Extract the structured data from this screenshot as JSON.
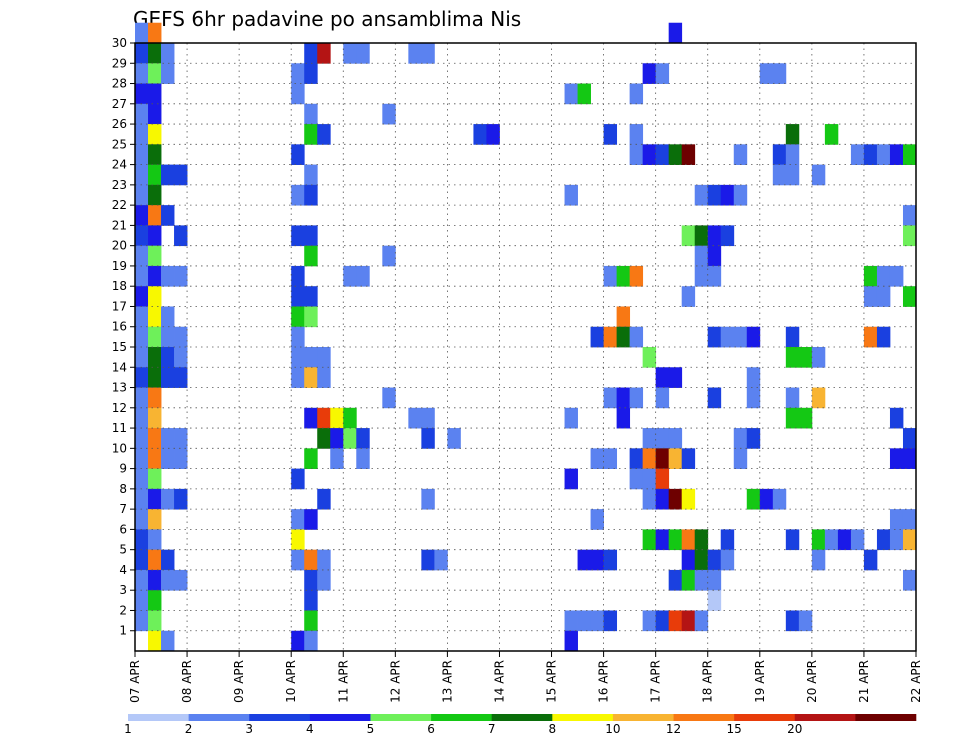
{
  "chart_data": {
    "type": "heatmap",
    "title": "GEFS 6hr padavine po ansamblima Nis",
    "y_ticks": [
      1,
      2,
      3,
      4,
      5,
      6,
      7,
      8,
      9,
      10,
      11,
      12,
      13,
      14,
      15,
      16,
      17,
      18,
      19,
      20,
      21,
      22,
      23,
      24,
      25,
      26,
      27,
      28,
      29,
      30
    ],
    "ylim": [
      0,
      30
    ],
    "x_ticks": [
      "07 APR",
      "08 APR",
      "09 APR",
      "10 APR",
      "11 APR",
      "12 APR",
      "13 APR",
      "14 APR",
      "15 APR",
      "16 APR",
      "17 APR",
      "18 APR",
      "19 APR",
      "20 APR",
      "21 APR",
      "22 APR"
    ],
    "grid": true,
    "time_steps": 60,
    "colorbar": {
      "labels": [
        "1",
        "2",
        "3",
        "4",
        "5",
        "6",
        "7",
        "8",
        "10",
        "12",
        "15",
        "20"
      ],
      "colors": [
        "#b4c8f8",
        "#5b82f0",
        "#1a40e0",
        "#1a1ae8",
        "#6ef05a",
        "#14c814",
        "#0a6e0a",
        "#f8f800",
        "#f8b432",
        "#f87814",
        "#e83c0a",
        "#b41414",
        "#6e0000"
      ]
    },
    "cells": [
      [
        0,
        30,
        1
      ],
      [
        0,
        29,
        2
      ],
      [
        0,
        28,
        1
      ],
      [
        0,
        27,
        3
      ],
      [
        0,
        26,
        1
      ],
      [
        0,
        25,
        1
      ],
      [
        0,
        24,
        1
      ],
      [
        0,
        23,
        1
      ],
      [
        0,
        22,
        1
      ],
      [
        0,
        21,
        3
      ],
      [
        0,
        20,
        2
      ],
      [
        0,
        19,
        1
      ],
      [
        0,
        18,
        1
      ],
      [
        0,
        17,
        3
      ],
      [
        0,
        16,
        1
      ],
      [
        0,
        15,
        1
      ],
      [
        0,
        14,
        1
      ],
      [
        0,
        13,
        2
      ],
      [
        0,
        12,
        1
      ],
      [
        0,
        11,
        1
      ],
      [
        0,
        10,
        1
      ],
      [
        0,
        9,
        1
      ],
      [
        0,
        8,
        1
      ],
      [
        0,
        7,
        1
      ],
      [
        0,
        6,
        1
      ],
      [
        0,
        5,
        2
      ],
      [
        0,
        4,
        2
      ],
      [
        0,
        3,
        1
      ],
      [
        0,
        2,
        1
      ],
      [
        0,
        1,
        1
      ],
      [
        1,
        30,
        9
      ],
      [
        1,
        29,
        6
      ],
      [
        1,
        28,
        4
      ],
      [
        1,
        27,
        3
      ],
      [
        1,
        26,
        3
      ],
      [
        1,
        25,
        7
      ],
      [
        1,
        24,
        6
      ],
      [
        1,
        23,
        5
      ],
      [
        1,
        22,
        6
      ],
      [
        1,
        21,
        9
      ],
      [
        1,
        20,
        3
      ],
      [
        1,
        19,
        4
      ],
      [
        1,
        18,
        3
      ],
      [
        1,
        17,
        7
      ],
      [
        1,
        16,
        7
      ],
      [
        1,
        15,
        4
      ],
      [
        1,
        14,
        6
      ],
      [
        1,
        13,
        6
      ],
      [
        1,
        12,
        9
      ],
      [
        1,
        11,
        8
      ],
      [
        1,
        10,
        9
      ],
      [
        1,
        9,
        9
      ],
      [
        1,
        8,
        4
      ],
      [
        1,
        7,
        3
      ],
      [
        1,
        6,
        8
      ],
      [
        1,
        5,
        1
      ],
      [
        1,
        4,
        9
      ],
      [
        1,
        3,
        3
      ],
      [
        1,
        2,
        5
      ],
      [
        1,
        1,
        4
      ],
      [
        1,
        0,
        7
      ],
      [
        2,
        29,
        1
      ],
      [
        2,
        28,
        1
      ],
      [
        2,
        23,
        2
      ],
      [
        2,
        21,
        2
      ],
      [
        2,
        18,
        1
      ],
      [
        2,
        16,
        1
      ],
      [
        2,
        15,
        1
      ],
      [
        2,
        14,
        2
      ],
      [
        2,
        13,
        2
      ],
      [
        2,
        10,
        1
      ],
      [
        2,
        9,
        1
      ],
      [
        2,
        7,
        1
      ],
      [
        2,
        4,
        2
      ],
      [
        2,
        3,
        1
      ],
      [
        2,
        0,
        1
      ],
      [
        3,
        23,
        2
      ],
      [
        3,
        20,
        2
      ],
      [
        3,
        18,
        1
      ],
      [
        3,
        15,
        1
      ],
      [
        3,
        14,
        1
      ],
      [
        3,
        13,
        2
      ],
      [
        3,
        10,
        1
      ],
      [
        3,
        9,
        1
      ],
      [
        3,
        7,
        2
      ],
      [
        3,
        3,
        1
      ],
      [
        12,
        28,
        1
      ],
      [
        12,
        27,
        1
      ],
      [
        12,
        24,
        2
      ],
      [
        12,
        22,
        1
      ],
      [
        12,
        20,
        2
      ],
      [
        12,
        18,
        2
      ],
      [
        12,
        17,
        2
      ],
      [
        12,
        16,
        5
      ],
      [
        12,
        15,
        1
      ],
      [
        12,
        14,
        1
      ],
      [
        12,
        13,
        1
      ],
      [
        12,
        8,
        2
      ],
      [
        12,
        6,
        1
      ],
      [
        12,
        5,
        7
      ],
      [
        12,
        4,
        1
      ],
      [
        12,
        0,
        3
      ],
      [
        13,
        29,
        2
      ],
      [
        13,
        28,
        2
      ],
      [
        13,
        26,
        1
      ],
      [
        13,
        25,
        5
      ],
      [
        13,
        23,
        1
      ],
      [
        13,
        22,
        2
      ],
      [
        13,
        20,
        2
      ],
      [
        13,
        19,
        5
      ],
      [
        13,
        17,
        2
      ],
      [
        13,
        16,
        4
      ],
      [
        13,
        14,
        1
      ],
      [
        13,
        13,
        8
      ],
      [
        13,
        11,
        3
      ],
      [
        13,
        9,
        5
      ],
      [
        13,
        6,
        3
      ],
      [
        13,
        4,
        9
      ],
      [
        13,
        3,
        2
      ],
      [
        13,
        2,
        2
      ],
      [
        13,
        1,
        5
      ],
      [
        13,
        0,
        1
      ],
      [
        14,
        29,
        11
      ],
      [
        14,
        25,
        2
      ],
      [
        14,
        14,
        1
      ],
      [
        14,
        13,
        1
      ],
      [
        14,
        11,
        10
      ],
      [
        14,
        10,
        6
      ],
      [
        14,
        7,
        2
      ],
      [
        14,
        4,
        1
      ],
      [
        14,
        3,
        1
      ],
      [
        15,
        11,
        7
      ],
      [
        15,
        10,
        3
      ],
      [
        15,
        9,
        1
      ],
      [
        16,
        11,
        5
      ],
      [
        16,
        10,
        4
      ],
      [
        17,
        10,
        2
      ],
      [
        17,
        9,
        1
      ],
      [
        16,
        29,
        1
      ],
      [
        17,
        29,
        1
      ],
      [
        16,
        18,
        1
      ],
      [
        17,
        18,
        1
      ],
      [
        19,
        26,
        1
      ],
      [
        19,
        19,
        1
      ],
      [
        19,
        12,
        1
      ],
      [
        21,
        29,
        1
      ],
      [
        22,
        29,
        1
      ],
      [
        21,
        11,
        1
      ],
      [
        22,
        11,
        1
      ],
      [
        22,
        10,
        2
      ],
      [
        22,
        7,
        1
      ],
      [
        22,
        4,
        2
      ],
      [
        23,
        4,
        1
      ],
      [
        24,
        10,
        1
      ],
      [
        26,
        25,
        2
      ],
      [
        27,
        25,
        3
      ],
      [
        33,
        27,
        1
      ],
      [
        33,
        22,
        1
      ],
      [
        33,
        11,
        1
      ],
      [
        33,
        8,
        3
      ],
      [
        33,
        1,
        1
      ],
      [
        33,
        0,
        3
      ],
      [
        34,
        27,
        5
      ],
      [
        34,
        4,
        3
      ],
      [
        34,
        1,
        1
      ],
      [
        35,
        15,
        2
      ],
      [
        35,
        9,
        1
      ],
      [
        35,
        6,
        1
      ],
      [
        35,
        4,
        3
      ],
      [
        35,
        1,
        1
      ],
      [
        36,
        25,
        2
      ],
      [
        36,
        18,
        1
      ],
      [
        36,
        15,
        9
      ],
      [
        36,
        12,
        1
      ],
      [
        36,
        9,
        1
      ],
      [
        36,
        4,
        2
      ],
      [
        36,
        1,
        2
      ],
      [
        37,
        18,
        5
      ],
      [
        37,
        16,
        9
      ],
      [
        37,
        15,
        6
      ],
      [
        37,
        12,
        3
      ],
      [
        37,
        11,
        3
      ],
      [
        38,
        27,
        1
      ],
      [
        38,
        25,
        1
      ],
      [
        38,
        24,
        1
      ],
      [
        38,
        18,
        9
      ],
      [
        38,
        15,
        1
      ],
      [
        38,
        12,
        1
      ],
      [
        38,
        9,
        2
      ],
      [
        38,
        8,
        1
      ],
      [
        39,
        28,
        3
      ],
      [
        39,
        24,
        3
      ],
      [
        39,
        14,
        4
      ],
      [
        39,
        10,
        1
      ],
      [
        39,
        9,
        9
      ],
      [
        39,
        8,
        1
      ],
      [
        39,
        7,
        1
      ],
      [
        39,
        5,
        5
      ],
      [
        39,
        1,
        1
      ],
      [
        40,
        28,
        1
      ],
      [
        40,
        24,
        2
      ],
      [
        40,
        13,
        3
      ],
      [
        40,
        12,
        1
      ],
      [
        40,
        10,
        1
      ],
      [
        40,
        9,
        12
      ],
      [
        40,
        8,
        10
      ],
      [
        40,
        7,
        3
      ],
      [
        40,
        5,
        3
      ],
      [
        40,
        1,
        2
      ],
      [
        41,
        30,
        3
      ],
      [
        41,
        24,
        6
      ],
      [
        41,
        13,
        3
      ],
      [
        41,
        10,
        1
      ],
      [
        41,
        9,
        8
      ],
      [
        41,
        7,
        12
      ],
      [
        41,
        5,
        5
      ],
      [
        41,
        3,
        2
      ],
      [
        41,
        1,
        10
      ],
      [
        42,
        24,
        12
      ],
      [
        42,
        20,
        4
      ],
      [
        42,
        17,
        1
      ],
      [
        42,
        9,
        2
      ],
      [
        42,
        7,
        7
      ],
      [
        42,
        5,
        9
      ],
      [
        42,
        4,
        3
      ],
      [
        42,
        3,
        5
      ],
      [
        42,
        1,
        11
      ],
      [
        43,
        22,
        1
      ],
      [
        43,
        20,
        6
      ],
      [
        43,
        19,
        1
      ],
      [
        43,
        18,
        1
      ],
      [
        43,
        5,
        6
      ],
      [
        43,
        4,
        6
      ],
      [
        43,
        3,
        1
      ],
      [
        43,
        1,
        1
      ],
      [
        44,
        22,
        2
      ],
      [
        44,
        20,
        3
      ],
      [
        44,
        19,
        3
      ],
      [
        44,
        18,
        1
      ],
      [
        44,
        15,
        2
      ],
      [
        44,
        12,
        2
      ],
      [
        44,
        4,
        2
      ],
      [
        44,
        3,
        1
      ],
      [
        44,
        2,
        0
      ],
      [
        45,
        22,
        3
      ],
      [
        45,
        20,
        2
      ],
      [
        45,
        15,
        1
      ],
      [
        45,
        5,
        2
      ],
      [
        45,
        4,
        1
      ],
      [
        46,
        24,
        1
      ],
      [
        46,
        22,
        1
      ],
      [
        46,
        15,
        1
      ],
      [
        46,
        10,
        1
      ],
      [
        46,
        9,
        1
      ],
      [
        47,
        15,
        3
      ],
      [
        47,
        13,
        1
      ],
      [
        47,
        12,
        1
      ],
      [
        47,
        10,
        2
      ],
      [
        47,
        7,
        5
      ],
      [
        48,
        28,
        1
      ],
      [
        48,
        7,
        3
      ],
      [
        49,
        28,
        1
      ],
      [
        49,
        24,
        2
      ],
      [
        49,
        23,
        1
      ],
      [
        49,
        7,
        1
      ],
      [
        50,
        25,
        6
      ],
      [
        50,
        24,
        1
      ],
      [
        50,
        23,
        1
      ],
      [
        50,
        15,
        2
      ],
      [
        50,
        14,
        5
      ],
      [
        50,
        12,
        1
      ],
      [
        50,
        11,
        5
      ],
      [
        50,
        5,
        2
      ],
      [
        50,
        1,
        2
      ],
      [
        51,
        14,
        5
      ],
      [
        51,
        11,
        5
      ],
      [
        51,
        1,
        1
      ],
      [
        52,
        23,
        1
      ],
      [
        52,
        14,
        1
      ],
      [
        52,
        12,
        8
      ],
      [
        52,
        5,
        5
      ],
      [
        52,
        4,
        1
      ],
      [
        53,
        25,
        5
      ],
      [
        53,
        5,
        1
      ],
      [
        54,
        5,
        3
      ],
      [
        55,
        24,
        1
      ],
      [
        55,
        5,
        1
      ],
      [
        56,
        24,
        2
      ],
      [
        56,
        18,
        5
      ],
      [
        56,
        17,
        1
      ],
      [
        56,
        15,
        9
      ],
      [
        56,
        4,
        2
      ],
      [
        57,
        24,
        1
      ],
      [
        57,
        18,
        1
      ],
      [
        57,
        17,
        1
      ],
      [
        57,
        15,
        2
      ],
      [
        57,
        5,
        2
      ],
      [
        58,
        24,
        3
      ],
      [
        58,
        18,
        1
      ],
      [
        58,
        11,
        2
      ],
      [
        58,
        9,
        3
      ],
      [
        58,
        6,
        1
      ],
      [
        58,
        5,
        1
      ],
      [
        59,
        24,
        5
      ],
      [
        59,
        21,
        1
      ],
      [
        59,
        20,
        4
      ],
      [
        59,
        17,
        5
      ],
      [
        59,
        10,
        2
      ],
      [
        59,
        9,
        3
      ],
      [
        59,
        6,
        1
      ],
      [
        59,
        5,
        8
      ],
      [
        59,
        3,
        1
      ],
      [
        60,
        17,
        6
      ],
      [
        60,
        16,
        6
      ],
      [
        60,
        10,
        2
      ],
      [
        60,
        5,
        2
      ],
      [
        60,
        3,
        1
      ]
    ]
  }
}
